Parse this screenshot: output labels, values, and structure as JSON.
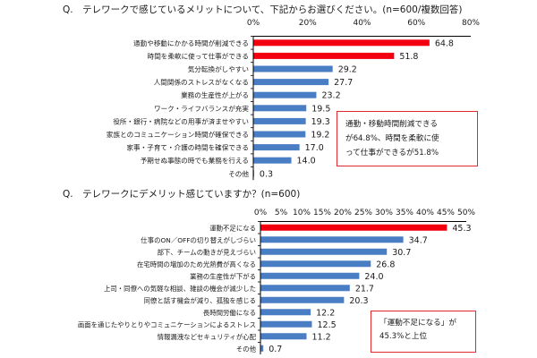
{
  "chart_data": [
    {
      "type": "bar",
      "orientation": "horizontal",
      "title": "Q.　テレワークで感じているメリットについて、下記からお選びください。(n=600/複数回答)",
      "x_ticks": [
        "0%",
        "20%",
        "40%",
        "60%",
        "80%"
      ],
      "xlim": [
        0,
        80
      ],
      "categories": [
        "通勤や移動にかかる時間が削減できる",
        "時間を柔軟に使って仕事ができる",
        "気分転換がしやすい",
        "人間関係のストレスがなくなる",
        "業務の生産性が上がる",
        "ワーク・ライフバランスが充実",
        "役所・銀行・病院などの用事が済ませやすい",
        "家族とのコミュニケーション時間が確保できる",
        "家事・子育て・介護の時間を確保できる",
        "予期せぬ事態の時でも業務を行える",
        "その他"
      ],
      "values": [
        64.8,
        51.8,
        29.2,
        27.7,
        23.2,
        19.5,
        19.3,
        19.2,
        17.0,
        14.0,
        0.3
      ],
      "value_labels": [
        "64.8",
        "51.8",
        "29.2",
        "27.7",
        "23.2",
        "19.5",
        "19.3",
        "19.2",
        "17.0",
        "14.0",
        "0.3"
      ],
      "highlight_count": 2,
      "annotation": [
        "通勤・移動時間削減できる",
        "が64.8%、時間を柔軟に使",
        "って仕事ができるが51.8%"
      ]
    },
    {
      "type": "bar",
      "orientation": "horizontal",
      "title": "Q.　テレワークにデメリット感じていますか？(n=600)",
      "x_ticks": [
        "0%",
        "5%",
        "10%",
        "15%",
        "20%",
        "25%",
        "30%",
        "35%",
        "40%",
        "45%",
        "50%"
      ],
      "xlim": [
        0,
        50
      ],
      "categories": [
        "運動不足になる",
        "仕事のON／OFFの切り替えがしづらい",
        "部下、チームの動きが見えづらい",
        "在宅時間の増加のため光熱費が高くなる",
        "業務の生産性が下がる",
        "上司・同僚への気軽な相談、雑談の機会が減少した",
        "同僚と話す機会が減り、孤独を感じる",
        "長時間労働になる",
        "画面を通じたやりとりやコミュニケーションによるストレス",
        "情報漏洩などセキュリティが心配",
        "その他"
      ],
      "values": [
        45.3,
        34.7,
        30.7,
        26.8,
        24.0,
        21.7,
        20.3,
        12.2,
        12.5,
        11.2,
        0.7
      ],
      "value_labels": [
        "45.3",
        "34.7",
        "30.7",
        "26.8",
        "24.0",
        "21.7",
        "20.3",
        "12.2",
        "12.5",
        "11.2",
        "0.7"
      ],
      "highlight_count": 1,
      "annotation": [
        "「運動不足になる」が",
        "45.3%と上位"
      ]
    }
  ],
  "colors": {
    "highlight": "#f2000f",
    "bar": "#4a7ec4",
    "axis": "#000000"
  }
}
